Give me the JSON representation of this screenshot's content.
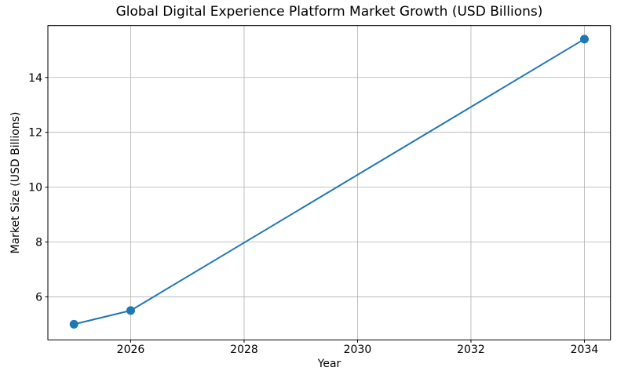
{
  "chart_data": {
    "type": "line",
    "title": "Global Digital Experience Platform Market Growth (USD Billions)",
    "xlabel": "Year",
    "ylabel": "Market Size (USD Billions)",
    "x": [
      2025,
      2026,
      2034
    ],
    "values": [
      5.0,
      5.5,
      15.4
    ],
    "series": [
      {
        "name": "Market Size (USD Billions)",
        "x": [
          2025,
          2026,
          2034
        ],
        "values": [
          5.0,
          5.5,
          15.4
        ]
      }
    ],
    "xticks": [
      2026,
      2028,
      2030,
      2032,
      2034
    ],
    "yticks": [
      6,
      8,
      10,
      12,
      14
    ],
    "xlim": [
      2024.54,
      2034.46
    ],
    "ylim": [
      4.43,
      15.89
    ],
    "grid": true,
    "legend": false,
    "line_color": "#1f77b4",
    "marker_color": "#1f77b4",
    "grid_color": "#b0b0b0",
    "spine_color": "#000000",
    "text_color": "#000000",
    "background": "#ffffff"
  }
}
